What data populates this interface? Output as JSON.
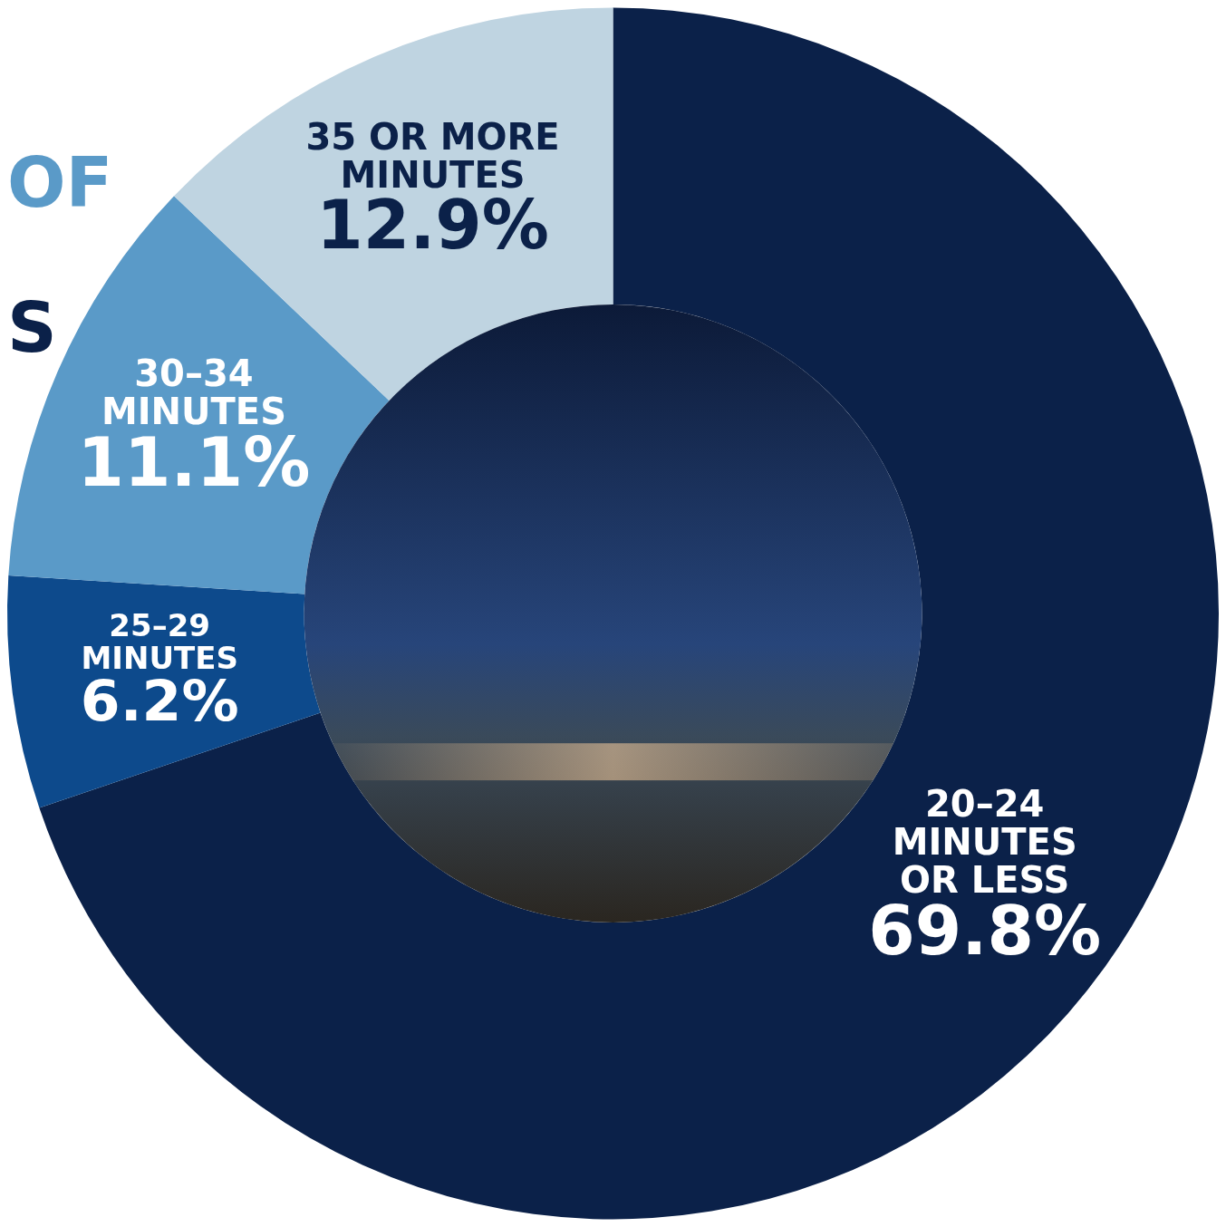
{
  "chart_data": {
    "type": "doughnut",
    "categories": [
      [
        "20–24",
        "MINUTES",
        "OR LESS"
      ],
      [
        "25–29",
        "MINUTES"
      ],
      [
        "30–34",
        "MINUTES"
      ],
      [
        "35 OR MORE",
        "MINUTES"
      ]
    ],
    "values": [
      69.8,
      6.2,
      11.1,
      12.9
    ],
    "value_labels": [
      "69.8%",
      "6.2%",
      "11.1%",
      "12.9%"
    ],
    "colors": [
      "#0b2149",
      "#0d4a8c",
      "#5a9ac8",
      "#bfd4e1"
    ],
    "data_labels": true,
    "annotations": [
      "OF",
      "S"
    ]
  }
}
